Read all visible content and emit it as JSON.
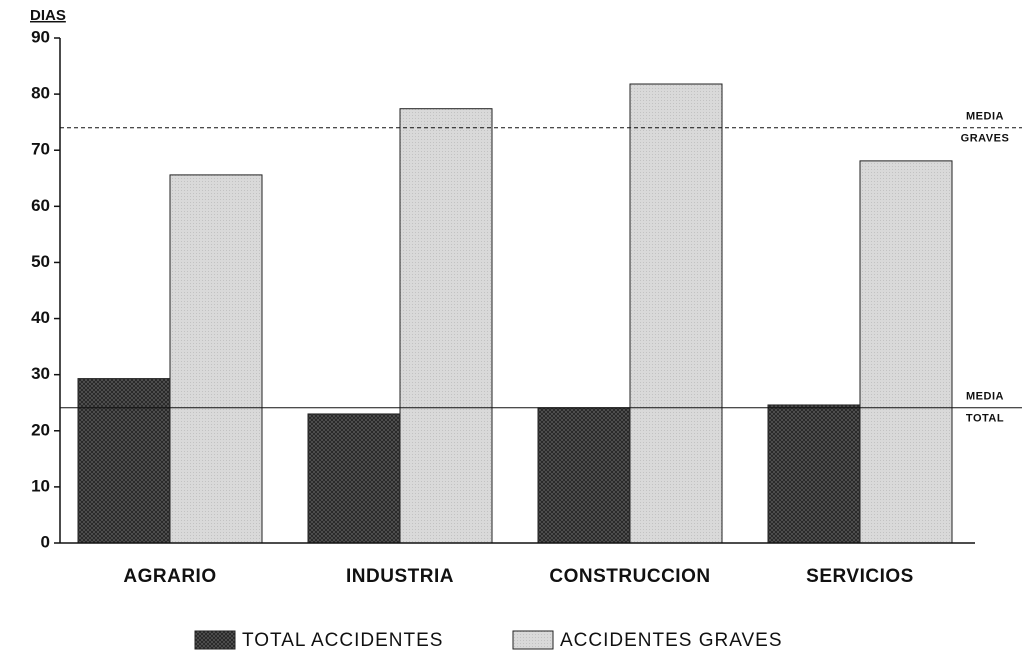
{
  "chart_data": {
    "type": "bar",
    "y_label": "DIAS",
    "categories": [
      "AGRARIO",
      "INDUSTRIA",
      "CONSTRUCCION",
      "SERVICIOS"
    ],
    "series": [
      {
        "name": "TOTAL ACCIDENTES",
        "color": "#555555",
        "values": [
          29.3,
          23.0,
          24.1,
          24.6
        ]
      },
      {
        "name": "ACCIDENTES GRAVES",
        "color": "#d9d9d9",
        "values": [
          65.6,
          77.4,
          81.8,
          68.1
        ]
      }
    ],
    "reference_lines": [
      {
        "value": 74.0,
        "label_lines": [
          "MEDIA",
          "GRAVES"
        ],
        "style": "dashed"
      },
      {
        "value": 24.1,
        "label_lines": [
          "MEDIA",
          "TOTAL"
        ],
        "style": "solid"
      }
    ],
    "ylim": [
      0,
      90
    ],
    "yticks": [
      0,
      10,
      20,
      30,
      40,
      50,
      60,
      70,
      80,
      90
    ],
    "legend": "bottom"
  }
}
